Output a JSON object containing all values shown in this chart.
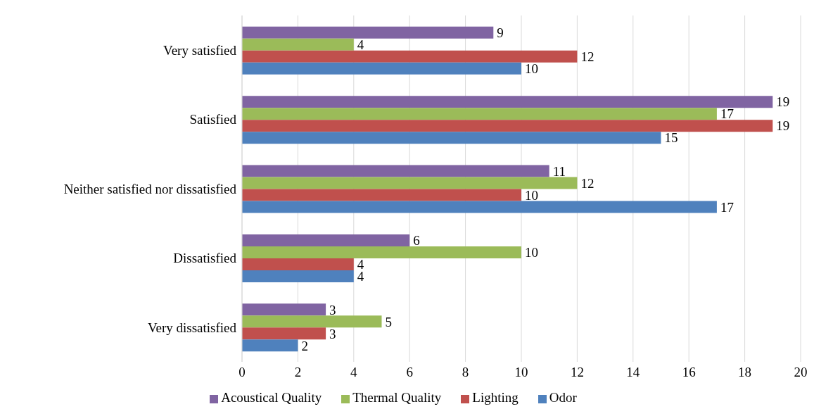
{
  "chart_data": {
    "type": "bar",
    "orientation": "horizontal",
    "categories": [
      "Very satisfied",
      "Satisfied",
      "Neither satisfied nor dissatisfied",
      "Dissatisfied",
      "Very dissatisfied"
    ],
    "series": [
      {
        "name": "Acoustical Quality",
        "color": "#8064a2",
        "values": [
          9,
          19,
          11,
          6,
          3
        ]
      },
      {
        "name": "Thermal Quality",
        "color": "#9bbb59",
        "values": [
          4,
          17,
          12,
          10,
          5
        ]
      },
      {
        "name": "Lighting",
        "color": "#c0504d",
        "values": [
          12,
          19,
          10,
          4,
          3
        ]
      },
      {
        "name": "Odor",
        "color": "#4f81bd",
        "values": [
          10,
          15,
          17,
          4,
          2
        ]
      }
    ],
    "xlim": [
      0,
      20
    ],
    "xticks": [
      0,
      2,
      4,
      6,
      8,
      10,
      12,
      14,
      16,
      18,
      20
    ],
    "grid": "x",
    "legend": "bottom",
    "data_labels": true
  }
}
